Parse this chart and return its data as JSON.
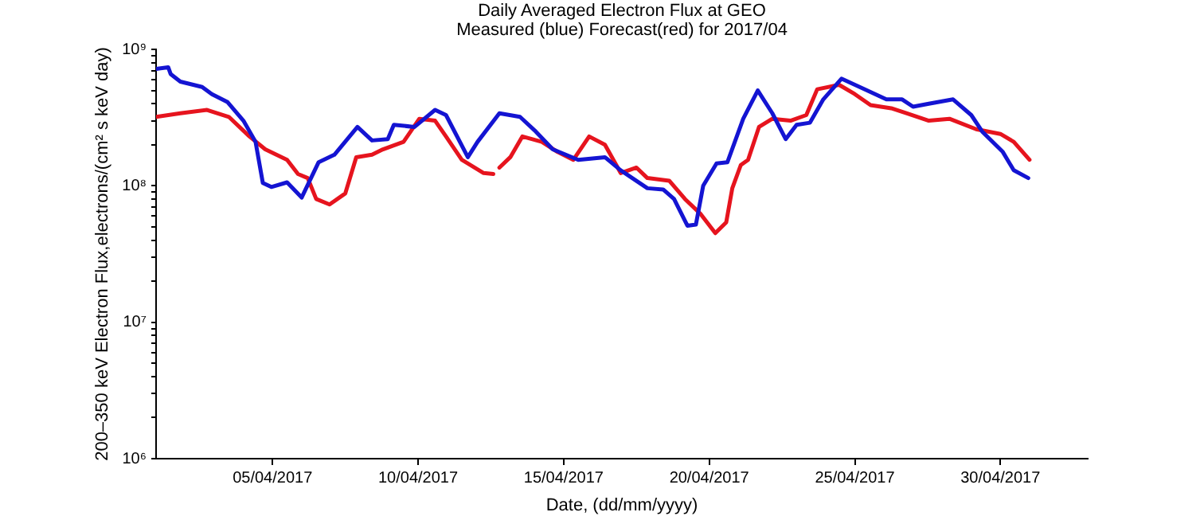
{
  "chart_data": {
    "type": "line",
    "title": "Daily Averaged Electron Flux at GEO",
    "subtitle": "Measured (blue) Forecast(red) for 2017/04",
    "xlabel": "Date, (dd/mm/yyyy)",
    "ylabel": "200–350 keV Electron Flux,electrons/(cm² s keV day)",
    "log": "y",
    "grid": false,
    "xlim": [
      "2017-04-01",
      "2017-05-03"
    ],
    "xticks": [
      {
        "value": "2017-04-05",
        "label": "05/04/2017"
      },
      {
        "value": "2017-04-10",
        "label": "10/04/2017"
      },
      {
        "value": "2017-04-15",
        "label": "15/04/2017"
      },
      {
        "value": "2017-04-20",
        "label": "20/04/2017"
      },
      {
        "value": "2017-04-25",
        "label": "25/04/2017"
      },
      {
        "value": "2017-04-30",
        "label": "30/04/2017"
      }
    ],
    "ylim": [
      1000000,
      1000000000
    ],
    "yticks": [
      {
        "value": 1000000,
        "label": "10⁶"
      },
      {
        "value": 2000000,
        "label": null
      },
      {
        "value": 3000000,
        "label": null
      },
      {
        "value": 4000000,
        "label": null
      },
      {
        "value": 5000000,
        "label": null
      },
      {
        "value": 6000000,
        "label": null
      },
      {
        "value": 7000000,
        "label": null
      },
      {
        "value": 8000000,
        "label": null
      },
      {
        "value": 9000000,
        "label": null
      },
      {
        "value": 10000000,
        "label": "10⁷"
      },
      {
        "value": 20000000,
        "label": null
      },
      {
        "value": 30000000,
        "label": null
      },
      {
        "value": 40000000,
        "label": null
      },
      {
        "value": 50000000,
        "label": null
      },
      {
        "value": 60000000,
        "label": null
      },
      {
        "value": 70000000,
        "label": null
      },
      {
        "value": 80000000,
        "label": null
      },
      {
        "value": 90000000,
        "label": null
      },
      {
        "value": 100000000,
        "label": "10⁸"
      },
      {
        "value": 200000000,
        "label": null
      },
      {
        "value": 300000000,
        "label": null
      },
      {
        "value": 400000000,
        "label": null
      },
      {
        "value": 500000000,
        "label": null
      },
      {
        "value": 600000000,
        "label": null
      },
      {
        "value": 700000000,
        "label": null
      },
      {
        "value": 800000000,
        "label": null
      },
      {
        "value": 900000000,
        "label": null
      },
      {
        "value": 1000000000,
        "label": "10⁹"
      }
    ],
    "series": [
      {
        "color": "#1414d2",
        "line_style": "solid",
        "x": [
          "2017-04-01T00:00",
          "2017-04-01T10:00",
          "2017-04-01T12:00",
          "2017-04-01T20:00",
          "2017-04-02T14:00",
          "2017-04-02T22:00",
          "2017-04-03T11:00",
          "2017-04-04T00:00",
          "2017-04-04T10:00",
          "2017-04-04T16:00",
          "2017-04-04T23:00",
          "2017-04-05T12:00",
          "2017-04-06T00:00",
          "2017-04-06T14:00",
          "2017-04-07T03:00",
          "2017-04-07T22:00",
          "2017-04-08T10:00",
          "2017-04-08T23:00",
          "2017-04-09T04:00",
          "2017-04-09T21:00",
          "2017-04-10T14:00",
          "2017-04-10T23:00",
          "2017-04-11T17:00",
          "2017-04-12T01:00",
          "2017-04-12T19:00",
          "2017-04-13T12:00",
          "2017-04-14T01:00",
          "2017-04-14T15:00",
          "2017-04-15T12:00",
          "2017-04-16T10:00",
          "2017-04-16T23:00",
          "2017-04-17T21:00",
          "2017-04-18T10:00",
          "2017-04-18T19:00",
          "2017-04-19T06:00",
          "2017-04-19T13:00",
          "2017-04-19T19:00",
          "2017-04-20T06:00",
          "2017-04-20T15:00",
          "2017-04-21T04:00",
          "2017-04-21T16:00",
          "2017-04-22T04:00",
          "2017-04-22T15:00",
          "2017-04-23T00:00",
          "2017-04-23T11:00",
          "2017-04-23T22:00",
          "2017-04-24T13:00",
          "2017-04-25T04:00",
          "2017-04-26T02:00",
          "2017-04-26T15:00",
          "2017-04-27T00:00",
          "2017-04-27T13:00",
          "2017-04-28T09:00",
          "2017-04-29T00:00",
          "2017-04-29T09:00",
          "2017-04-30T02:00",
          "2017-04-30T11:00",
          "2017-04-30T23:00"
        ],
        "values": [
          720000000.0,
          740000000.0,
          660000000.0,
          580000000.0,
          530000000.0,
          470000000.0,
          410000000.0,
          300000000.0,
          210000000.0,
          105000000.0,
          98000000.0,
          106000000.0,
          82000000.0,
          149000000.0,
          169000000.0,
          270000000.0,
          215000000.0,
          220000000.0,
          280000000.0,
          270000000.0,
          360000000.0,
          330000000.0,
          162000000.0,
          210000000.0,
          340000000.0,
          320000000.0,
          250000000.0,
          185000000.0,
          155000000.0,
          162000000.0,
          130000000.0,
          96000000.0,
          94000000.0,
          80000000.0,
          51000000.0,
          52000000.0,
          100000000.0,
          146000000.0,
          149000000.0,
          310000000.0,
          500000000.0,
          340000000.0,
          220000000.0,
          280000000.0,
          290000000.0,
          430000000.0,
          610000000.0,
          530000000.0,
          430000000.0,
          430000000.0,
          380000000.0,
          400000000.0,
          430000000.0,
          330000000.0,
          250000000.0,
          177000000.0,
          130000000.0,
          114000000.0
        ]
      },
      {
        "color": "#e6141e",
        "line_style": "solid",
        "x": [
          "2017-04-01T00:00",
          "2017-04-01T20:00",
          "2017-04-02T18:00",
          "2017-04-03T12:00",
          "2017-04-04T05:00",
          "2017-04-04T18:00",
          "2017-04-05T12:00",
          "2017-04-05T21:00",
          "2017-04-06T05:00",
          "2017-04-06T12:00",
          "2017-04-06T23:00",
          "2017-04-07T12:00",
          "2017-04-07T21:00",
          "2017-04-08T10:00",
          "2017-04-08T19:00",
          "2017-04-09T12:00",
          "2017-04-10T01:00",
          "2017-04-10T14:00",
          "2017-04-10T23:00",
          "2017-04-11T12:00",
          "2017-04-12T06:00",
          "2017-04-12T14:00",
          "2017-04-12T16:00",
          "2017-04-12T19:00",
          "2017-04-13T04:00",
          "2017-04-13T14:00",
          "2017-04-14T06:00",
          "2017-04-14T19:00",
          "2017-04-15T08:00",
          "2017-04-15T21:00",
          "2017-04-16T10:00",
          "2017-04-16T23:00",
          "2017-04-17T12:00",
          "2017-04-17T21:00",
          "2017-04-18T15:00",
          "2017-04-19T04:00",
          "2017-04-19T17:00",
          "2017-04-20T05:00",
          "2017-04-20T14:00",
          "2017-04-20T19:00",
          "2017-04-21T02:00",
          "2017-04-21T08:00",
          "2017-04-21T17:00",
          "2017-04-22T04:00",
          "2017-04-22T19:00",
          "2017-04-23T08:00",
          "2017-04-23T17:00",
          "2017-04-24T11:00",
          "2017-04-25T00:00",
          "2017-04-25T13:00",
          "2017-04-26T06:00",
          "2017-04-26T19:00",
          "2017-04-27T13:00",
          "2017-04-28T06:00",
          "2017-04-29T04:00",
          "2017-04-30T00:00",
          "2017-04-30T11:00",
          "2017-05-01T00:00"
        ],
        "values": [
          320000000.0,
          340000000.0,
          360000000.0,
          320000000.0,
          230000000.0,
          185000000.0,
          155000000.0,
          122000000.0,
          114000000.0,
          80000000.0,
          73000000.0,
          88000000.0,
          162000000.0,
          169000000.0,
          185000000.0,
          210000000.0,
          310000000.0,
          300000000.0,
          230000000.0,
          155000000.0,
          124000000.0,
          122000000.0,
          null,
          136000000.0,
          162000000.0,
          230000000.0,
          210000000.0,
          177000000.0,
          155000000.0,
          230000000.0,
          200000000.0,
          124000000.0,
          136000000.0,
          114000000.0,
          109000000.0,
          80000000.0,
          62000000.0,
          45000000.0,
          54000000.0,
          96000000.0,
          142000000.0,
          155000000.0,
          270000000.0,
          310000000.0,
          300000000.0,
          330000000.0,
          510000000.0,
          550000000.0,
          470000000.0,
          390000000.0,
          370000000.0,
          340000000.0,
          300000000.0,
          310000000.0,
          260000000.0,
          240000000.0,
          210000000.0,
          155000000.0
        ]
      }
    ]
  }
}
